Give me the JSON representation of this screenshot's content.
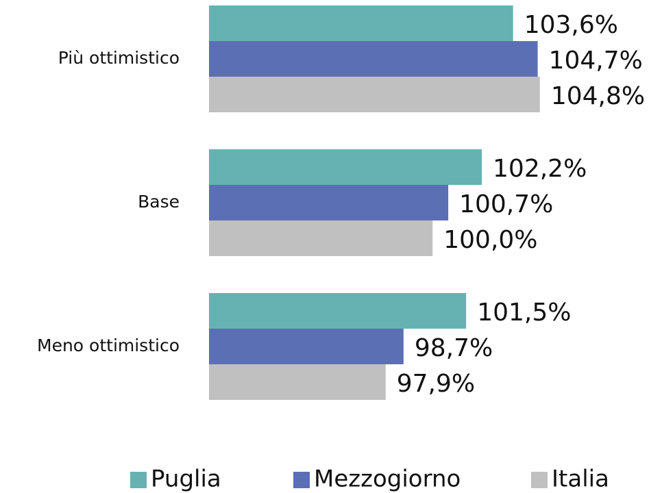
{
  "chart_data": {
    "type": "barh",
    "categories": [
      "Più ottimistico",
      "Base",
      "Meno ottimistico"
    ],
    "series": [
      {
        "name": "Puglia",
        "color": "#66b2b2",
        "values": [
          103.6,
          102.2,
          101.5
        ],
        "value_labels": [
          "103,6%",
          "102,2%",
          "101,5%"
        ]
      },
      {
        "name": "Mezzogiorno",
        "color": "#5b6fb5",
        "values": [
          104.7,
          100.7,
          98.7
        ],
        "value_labels": [
          "104,7%",
          "100,7%",
          "98,7%"
        ]
      },
      {
        "name": "Italia",
        "color": "#c0c0c0",
        "values": [
          104.8,
          100.0,
          97.9
        ],
        "value_labels": [
          "104,8%",
          "100,0%",
          "97,9%"
        ]
      }
    ],
    "xlim": [
      90,
      106
    ],
    "legend": "bottom"
  }
}
